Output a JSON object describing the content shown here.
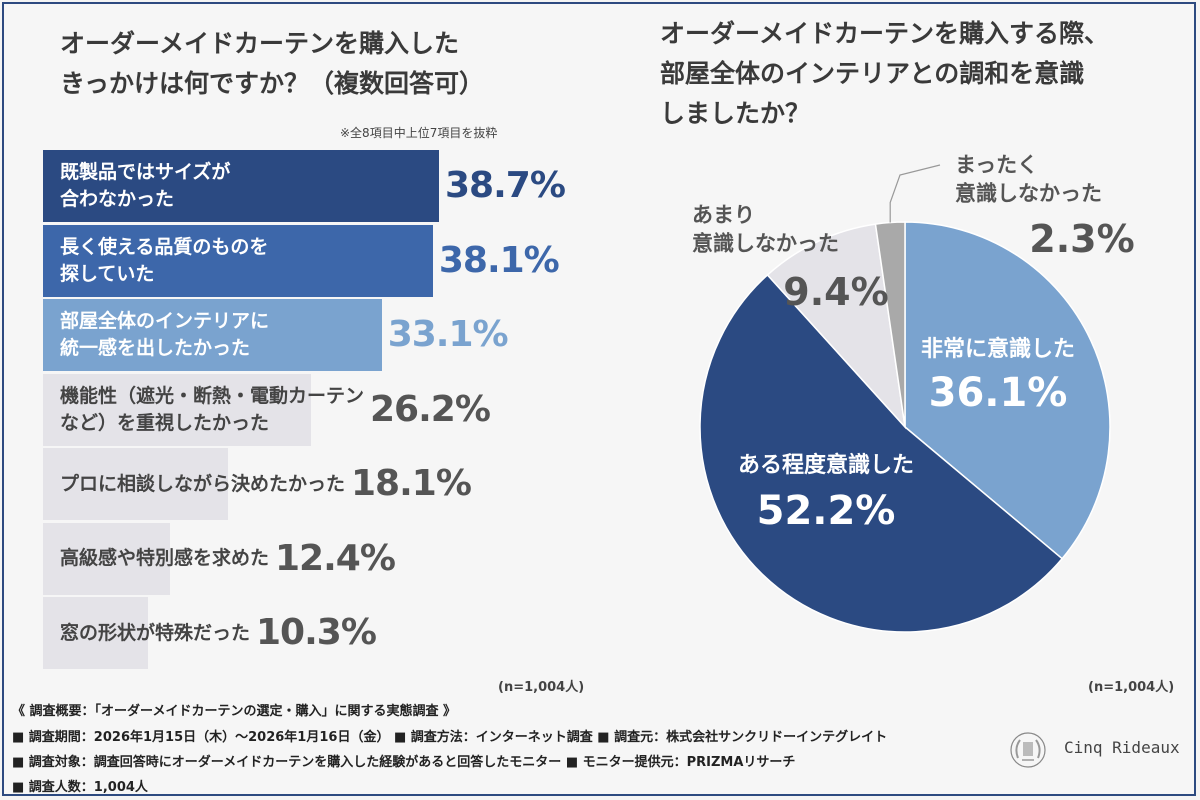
{
  "left_panel": {
    "title": "オーダーメイドカーテンを購入した\nきっかけは何ですか？（複数回答可）",
    "note": "※全8項目中上位7項目を抜粋",
    "n_label": "(n=1,004人)"
  },
  "right_panel": {
    "title": "オーダーメイドカーテンを購入する際、\n部屋全体のインテリアとの調和を意識\nしましたか？",
    "n_label": "(n=1,004人)"
  },
  "chart_data": [
    {
      "type": "bar",
      "orientation": "horizontal",
      "title": "オーダーメイドカーテンを購入したきっかけは何ですか？（複数回答可）",
      "categories": [
        "既製品ではサイズが\n合わなかった",
        "長く使える品質のものを\n探していた",
        "部屋全体のインテリアに\n統一感を出したかった",
        "機能性（遮光・断熱・電動カーテン\nなど）を重視したかった",
        "プロに相談しながら決めたかった",
        "高級感や特別感を求めた",
        "窓の形状が特殊だった"
      ],
      "values": [
        38.7,
        38.1,
        33.1,
        26.2,
        18.1,
        12.4,
        10.3
      ],
      "value_labels": [
        "38.7%",
        "38.1%",
        "33.1%",
        "26.2%",
        "18.1%",
        "12.4%",
        "10.3%"
      ],
      "bar_colors": [
        "#2b4a82",
        "#3d67aa",
        "#7aa3cf",
        "#e4e3e8",
        "#e4e3e8",
        "#e4e3e8",
        "#e4e3e8"
      ],
      "label_colors": [
        "#ffffff",
        "#ffffff",
        "#ffffff",
        "#444444",
        "#444444",
        "#444444",
        "#444444"
      ],
      "value_colors": [
        "#2b4a82",
        "#3d67aa",
        "#7aa3cf",
        "#555555",
        "#555555",
        "#555555",
        "#555555"
      ],
      "xlim": [
        0,
        38.7
      ]
    },
    {
      "type": "pie",
      "title": "オーダーメイドカーテンを購入する際、部屋全体のインテリアとの調和を意識しましたか？",
      "slices": [
        {
          "label": "非常に意識した",
          "value": 36.1,
          "value_label": "36.1%",
          "color": "#7aa3cf"
        },
        {
          "label": "ある程度意識した",
          "value": 52.2,
          "value_label": "52.2%",
          "color": "#2b4a82"
        },
        {
          "label": "あまり\n意識しなかった",
          "value": 9.4,
          "value_label": "9.4%",
          "color": "#e4e3e8"
        },
        {
          "label": "まったく\n意識しなかった",
          "value": 2.3,
          "value_label": "2.3%",
          "color": "#a9a9a9"
        }
      ]
    }
  ],
  "footer": {
    "line1": "《 調査概要：「オーダーメイドカーテンの選定・購入」に関する実態調査 》",
    "line2": "■ 調査期間：2026年1月15日（木）～2026年1月16日（金） ■ 調査方法：インターネット調査 ■ 調査元：株式会社サンクリドーインテグレイト",
    "line3": "■ 調査対象：調査回答時にオーダーメイドカーテンを購入した経験があると回答したモニター ■ モニター提供元：PRIZMAリサーチ",
    "line4": "■ 調査人数：1,004人"
  },
  "logo": {
    "text": "Cinq Rideaux"
  }
}
